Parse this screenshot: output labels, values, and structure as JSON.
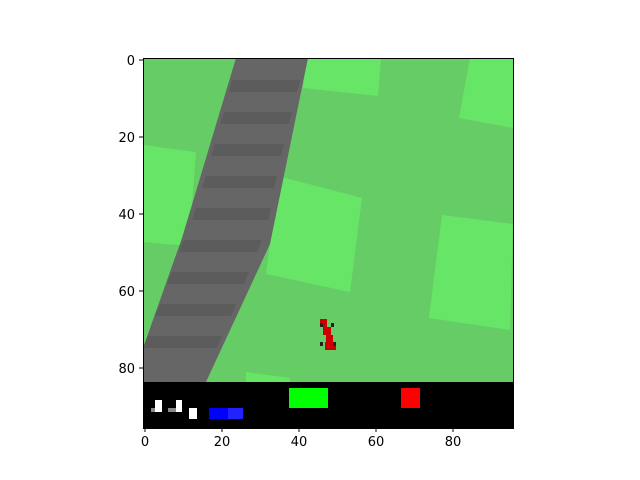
{
  "figure": {
    "x_ticks": [
      "0",
      "20",
      "40",
      "60",
      "80"
    ],
    "y_ticks": [
      "0",
      "20",
      "40",
      "60",
      "80"
    ]
  },
  "game": {
    "name": "CarRacing",
    "colors": {
      "grass": "#66cc66",
      "grass_light": "#66e566",
      "road": "#666666",
      "road_dark": "#5e5e5e",
      "car": "#cc0000",
      "hud_background": "#000000",
      "speed_bar": "#ffffff",
      "abs_bars": "#0000ff",
      "steering_bar": "#00ff00",
      "gyro_bar": "#ff0000"
    },
    "hud": {
      "steering_indicator_icon": "green-bar",
      "gyroscope_indicator_icon": "red-bar",
      "wheel_abs_indicator_icon": "blue-bars",
      "speed_indicator_icon": "white-bars"
    }
  }
}
